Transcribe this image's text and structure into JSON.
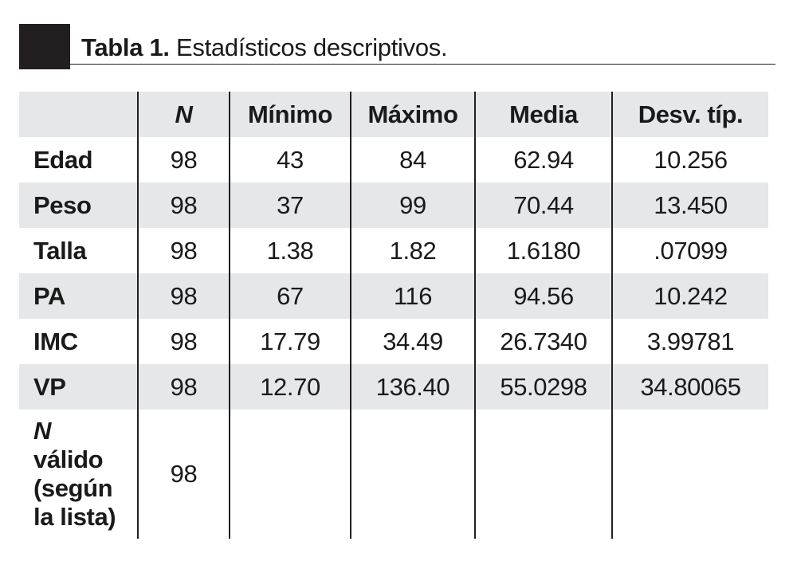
{
  "title": {
    "label": "Tabla 1.",
    "text": " Estadísticos descriptivos."
  },
  "table": {
    "headers": [
      "",
      "N",
      "Mínimo",
      "Máximo",
      "Media",
      "Desv. típ."
    ],
    "rows": [
      {
        "label": "Edad",
        "n": "98",
        "min": "43",
        "max": "84",
        "mean": "62.94",
        "sd": "10.256"
      },
      {
        "label": "Peso",
        "n": "98",
        "min": "37",
        "max": "99",
        "mean": "70.44",
        "sd": "13.450"
      },
      {
        "label": "Talla",
        "n": "98",
        "min": "1.38",
        "max": "1.82",
        "mean": "1.6180",
        "sd": ".07099"
      },
      {
        "label": "PA",
        "n": "98",
        "min": "67",
        "max": "116",
        "mean": "94.56",
        "sd": "10.242"
      },
      {
        "label": "IMC",
        "n": "98",
        "min": "17.79",
        "max": "34.49",
        "mean": "26.7340",
        "sd": "3.99781"
      },
      {
        "label": "VP",
        "n": "98",
        "min": "12.70",
        "max": "136.40",
        "mean": "55.0298",
        "sd": "34.80065"
      }
    ],
    "last_row": {
      "label_n": "N",
      "label_rest": [
        "válido",
        "(según",
        "la lista)"
      ],
      "n": "98"
    }
  }
}
